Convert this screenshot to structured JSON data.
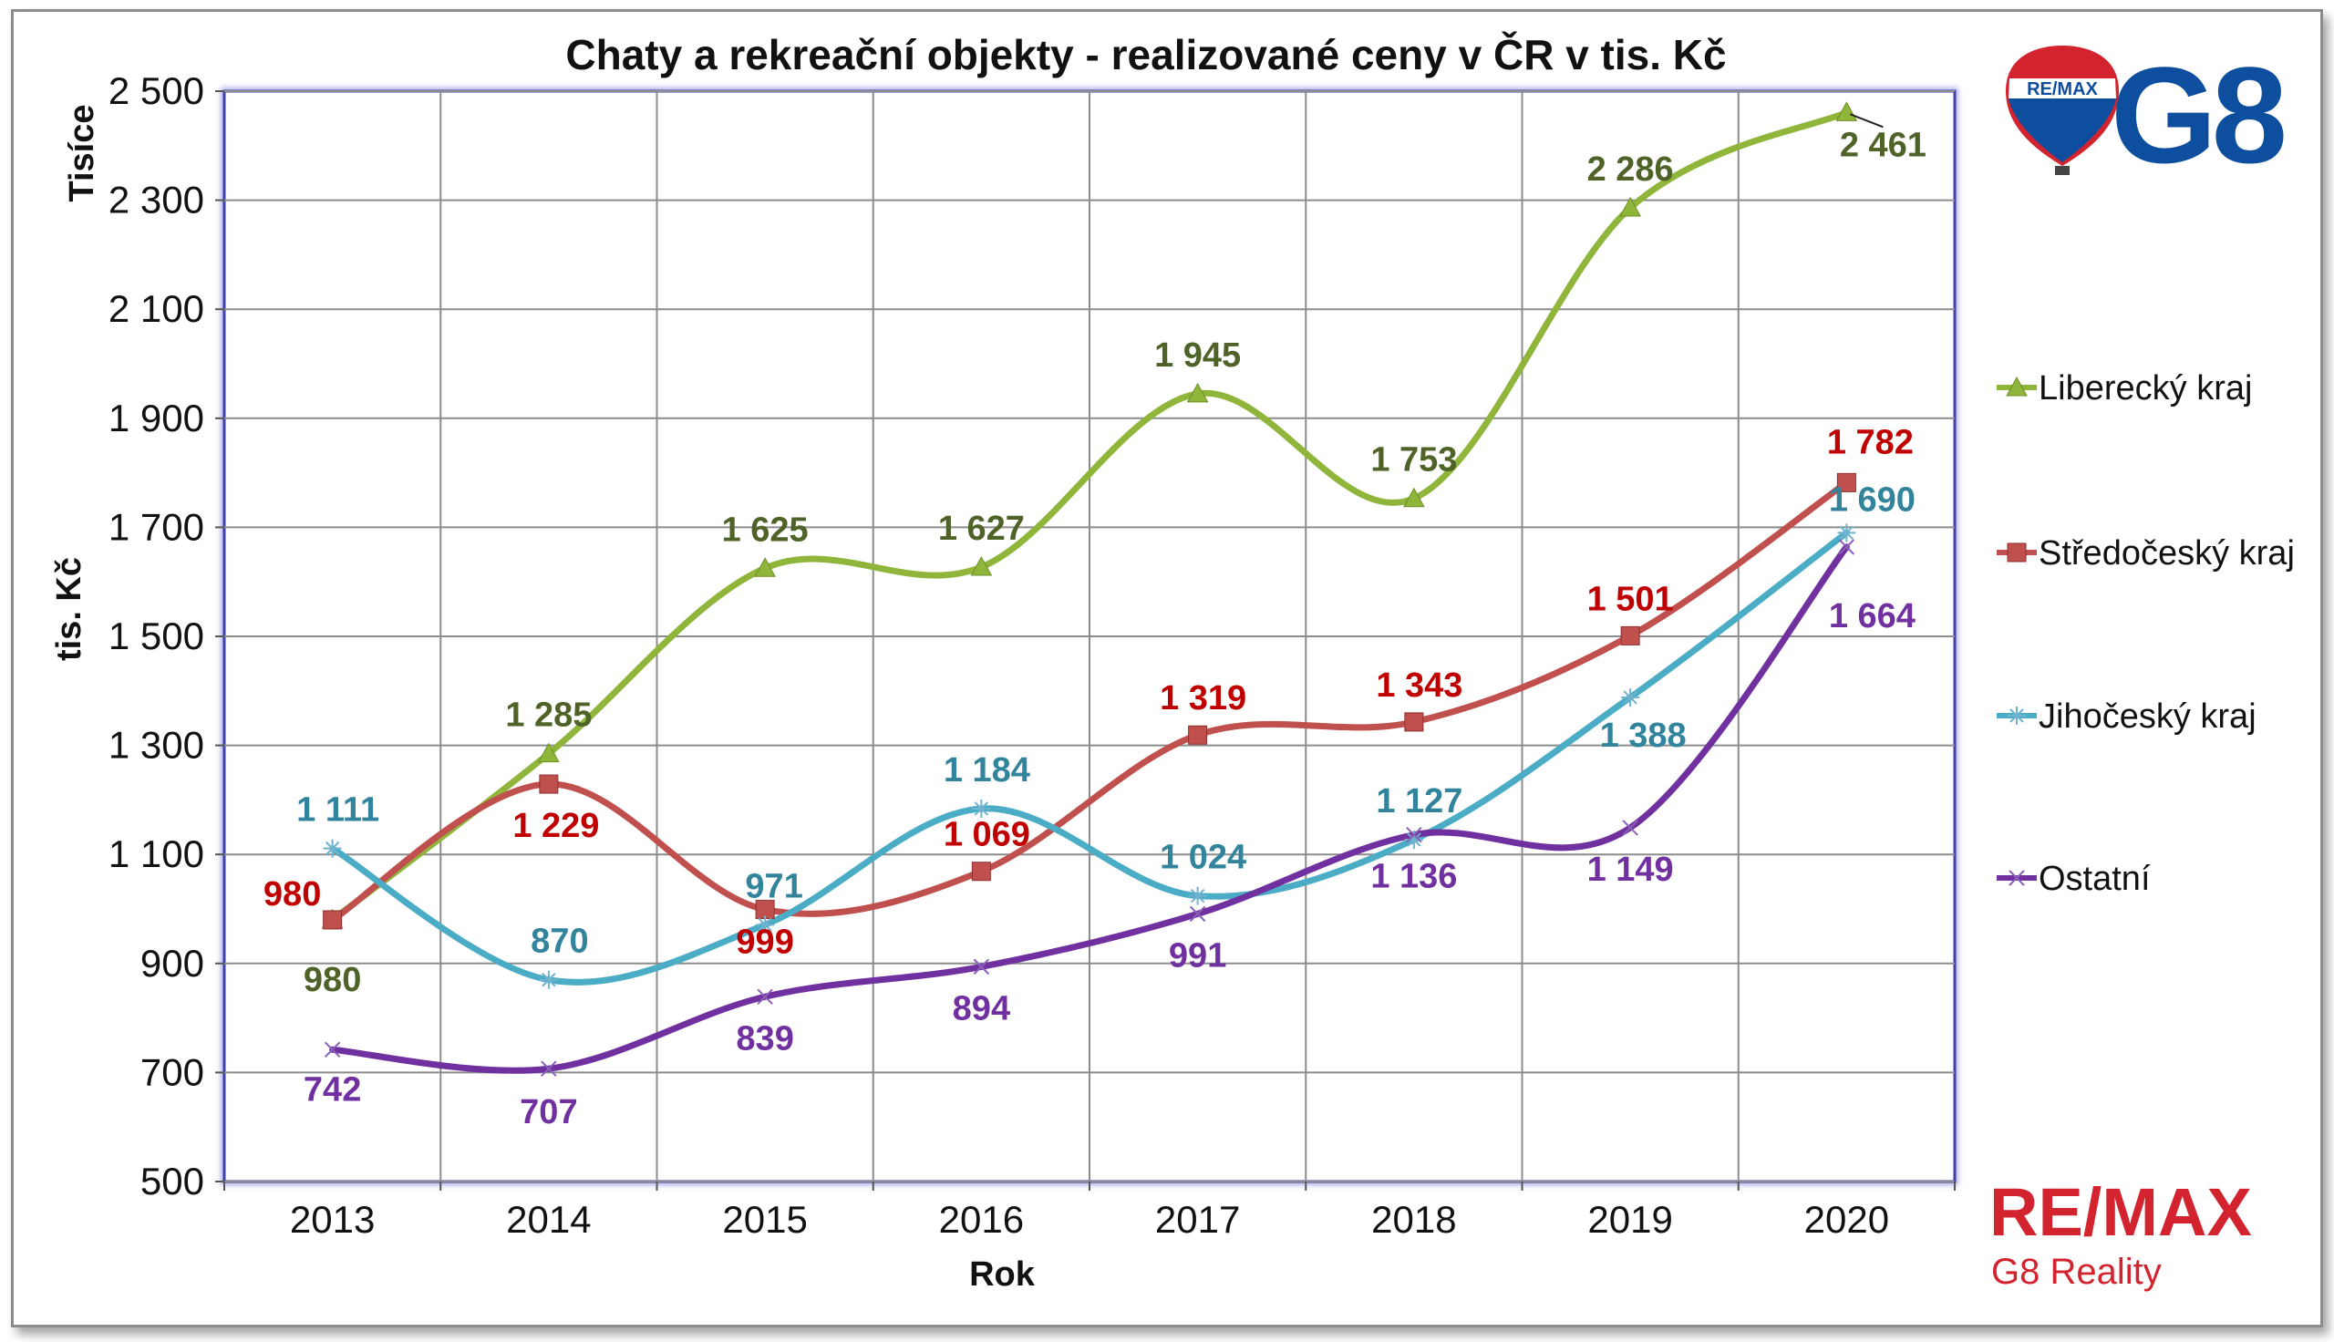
{
  "chart_data": {
    "type": "line",
    "title": "Chaty a rekreační objekty - realizované ceny v ČR v tis. Kč",
    "xlabel": "Rok",
    "ylabel": "tis. Kč",
    "y_unit_label": "Tisíce",
    "categories": [
      "2013",
      "2014",
      "2015",
      "2016",
      "2017",
      "2018",
      "2019",
      "2020"
    ],
    "ylim": [
      500,
      2500
    ],
    "yticks": [
      500,
      700,
      900,
      1100,
      1300,
      1500,
      1700,
      1900,
      2100,
      2300,
      2500
    ],
    "ytick_labels": [
      "500",
      "700",
      "900",
      "1 100",
      "1 300",
      "1 500",
      "1 700",
      "1 900",
      "2 100",
      "2 300",
      "2 500"
    ],
    "grid": true,
    "legend_position": "right",
    "series": [
      {
        "name": "Liberecký kraj",
        "color": "#8fb53a",
        "label_color": "#4f6228",
        "marker": "triangle",
        "values": [
          980,
          1285,
          1625,
          1627,
          1945,
          1753,
          2286,
          2461
        ],
        "labels": [
          "980",
          "1 285",
          "1 625",
          "1 627",
          "1 945",
          "1 753",
          "2 286",
          "2 461"
        ]
      },
      {
        "name": "Středočeský kraj",
        "color": "#c0504d",
        "label_color": "#c00000",
        "marker": "square",
        "values": [
          980,
          1229,
          999,
          1069,
          1319,
          1343,
          1501,
          1782
        ],
        "labels": [
          "980",
          "1 229",
          "999",
          "1 069",
          "1 319",
          "1 343",
          "1 501",
          "1 782"
        ]
      },
      {
        "name": "Jihočeský kraj",
        "color": "#4bacc6",
        "label_color": "#31849b",
        "marker": "asterisk",
        "values": [
          1111,
          870,
          971,
          1184,
          1024,
          1127,
          1388,
          1690
        ],
        "labels": [
          "1 111",
          "870",
          "971",
          "1 184",
          "1 024",
          "1 127",
          "1 388",
          "1 690"
        ]
      },
      {
        "name": "Ostatní",
        "color": "#7030a0",
        "label_color": "#7030a0",
        "marker": "x",
        "values": [
          742,
          707,
          839,
          894,
          991,
          1136,
          1149,
          1664
        ],
        "labels": [
          "742",
          "707",
          "839",
          "894",
          "991",
          "1 136",
          "1 149",
          "1 664"
        ]
      }
    ]
  },
  "branding": {
    "balloon_text": "RE/MAX",
    "g8_logo_text": "G8",
    "remax_text": "RE/MAX",
    "office_text": "G8 Reality",
    "colors": {
      "remax_red": "#d3232f",
      "g8_blue": "#0d4e9e"
    }
  }
}
